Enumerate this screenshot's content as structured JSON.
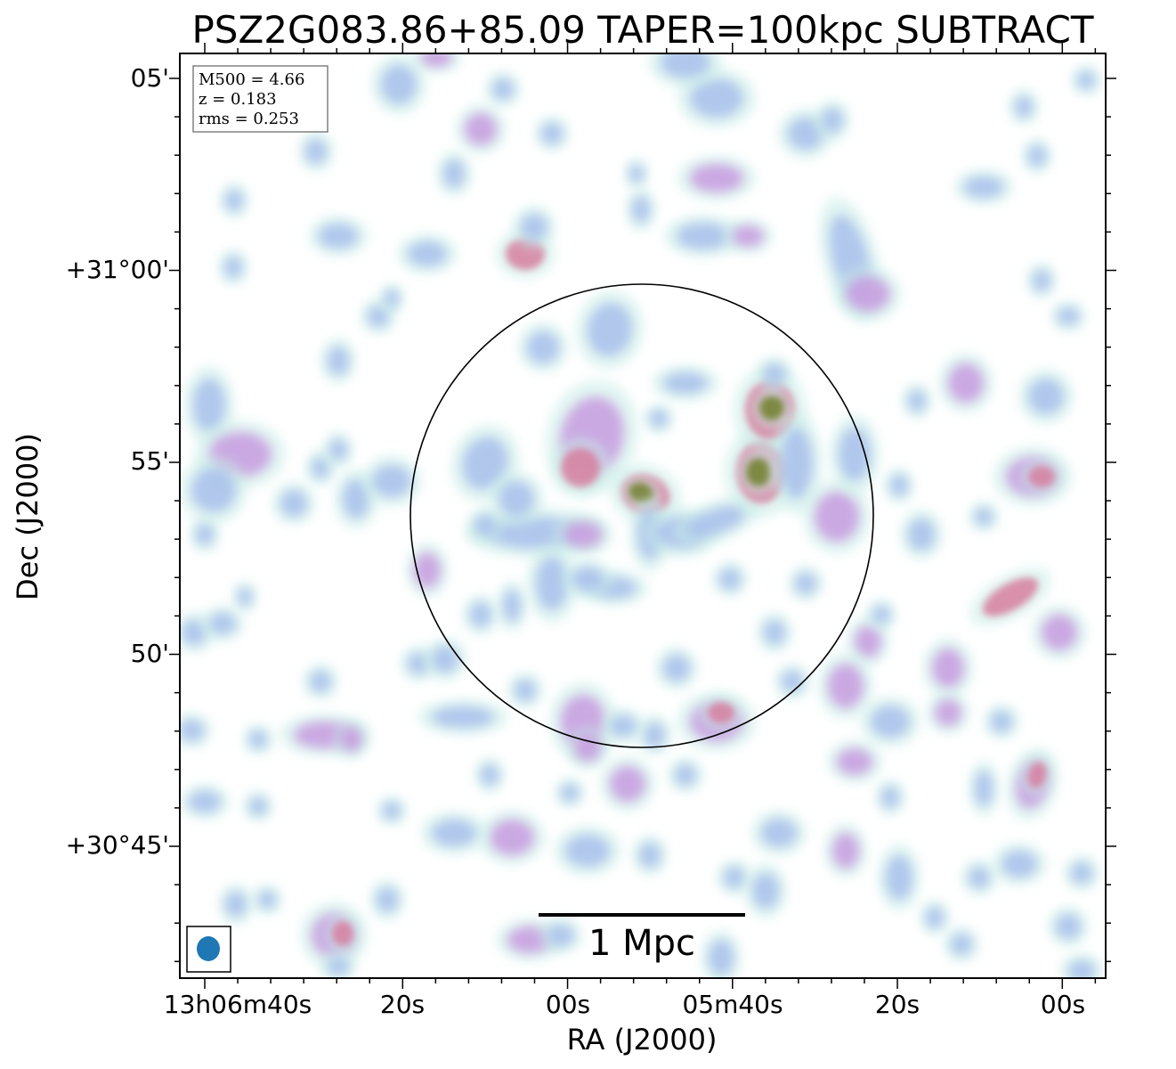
{
  "figure": {
    "title": "PSZ2G083.86+85.09 TAPER=100kpc SUBTRACT",
    "xlabel": "RA (J2000)",
    "ylabel": "Dec (J2000)",
    "x_ticks": [
      "13h06m40s",
      "20s",
      "00s",
      "05m40s",
      "20s",
      "00s"
    ],
    "y_ticks": [
      "05'",
      "+31°00'",
      "55'",
      "50'",
      "+30°45'"
    ],
    "info_box": [
      "M500 = 4.66",
      "z = 0.183",
      "rms = 0.253"
    ],
    "scale_bar": "1 Mpc",
    "colors": {
      "background": "#ffffff",
      "frame": "#000000",
      "emission_faint": "#c8ece6",
      "emission_low": "#a9c0ec",
      "emission_mid": "#c79be0",
      "emission_high": "#d77f9f",
      "emission_peak": "#6f7f2c",
      "beam": "#1f77b4"
    }
  }
}
